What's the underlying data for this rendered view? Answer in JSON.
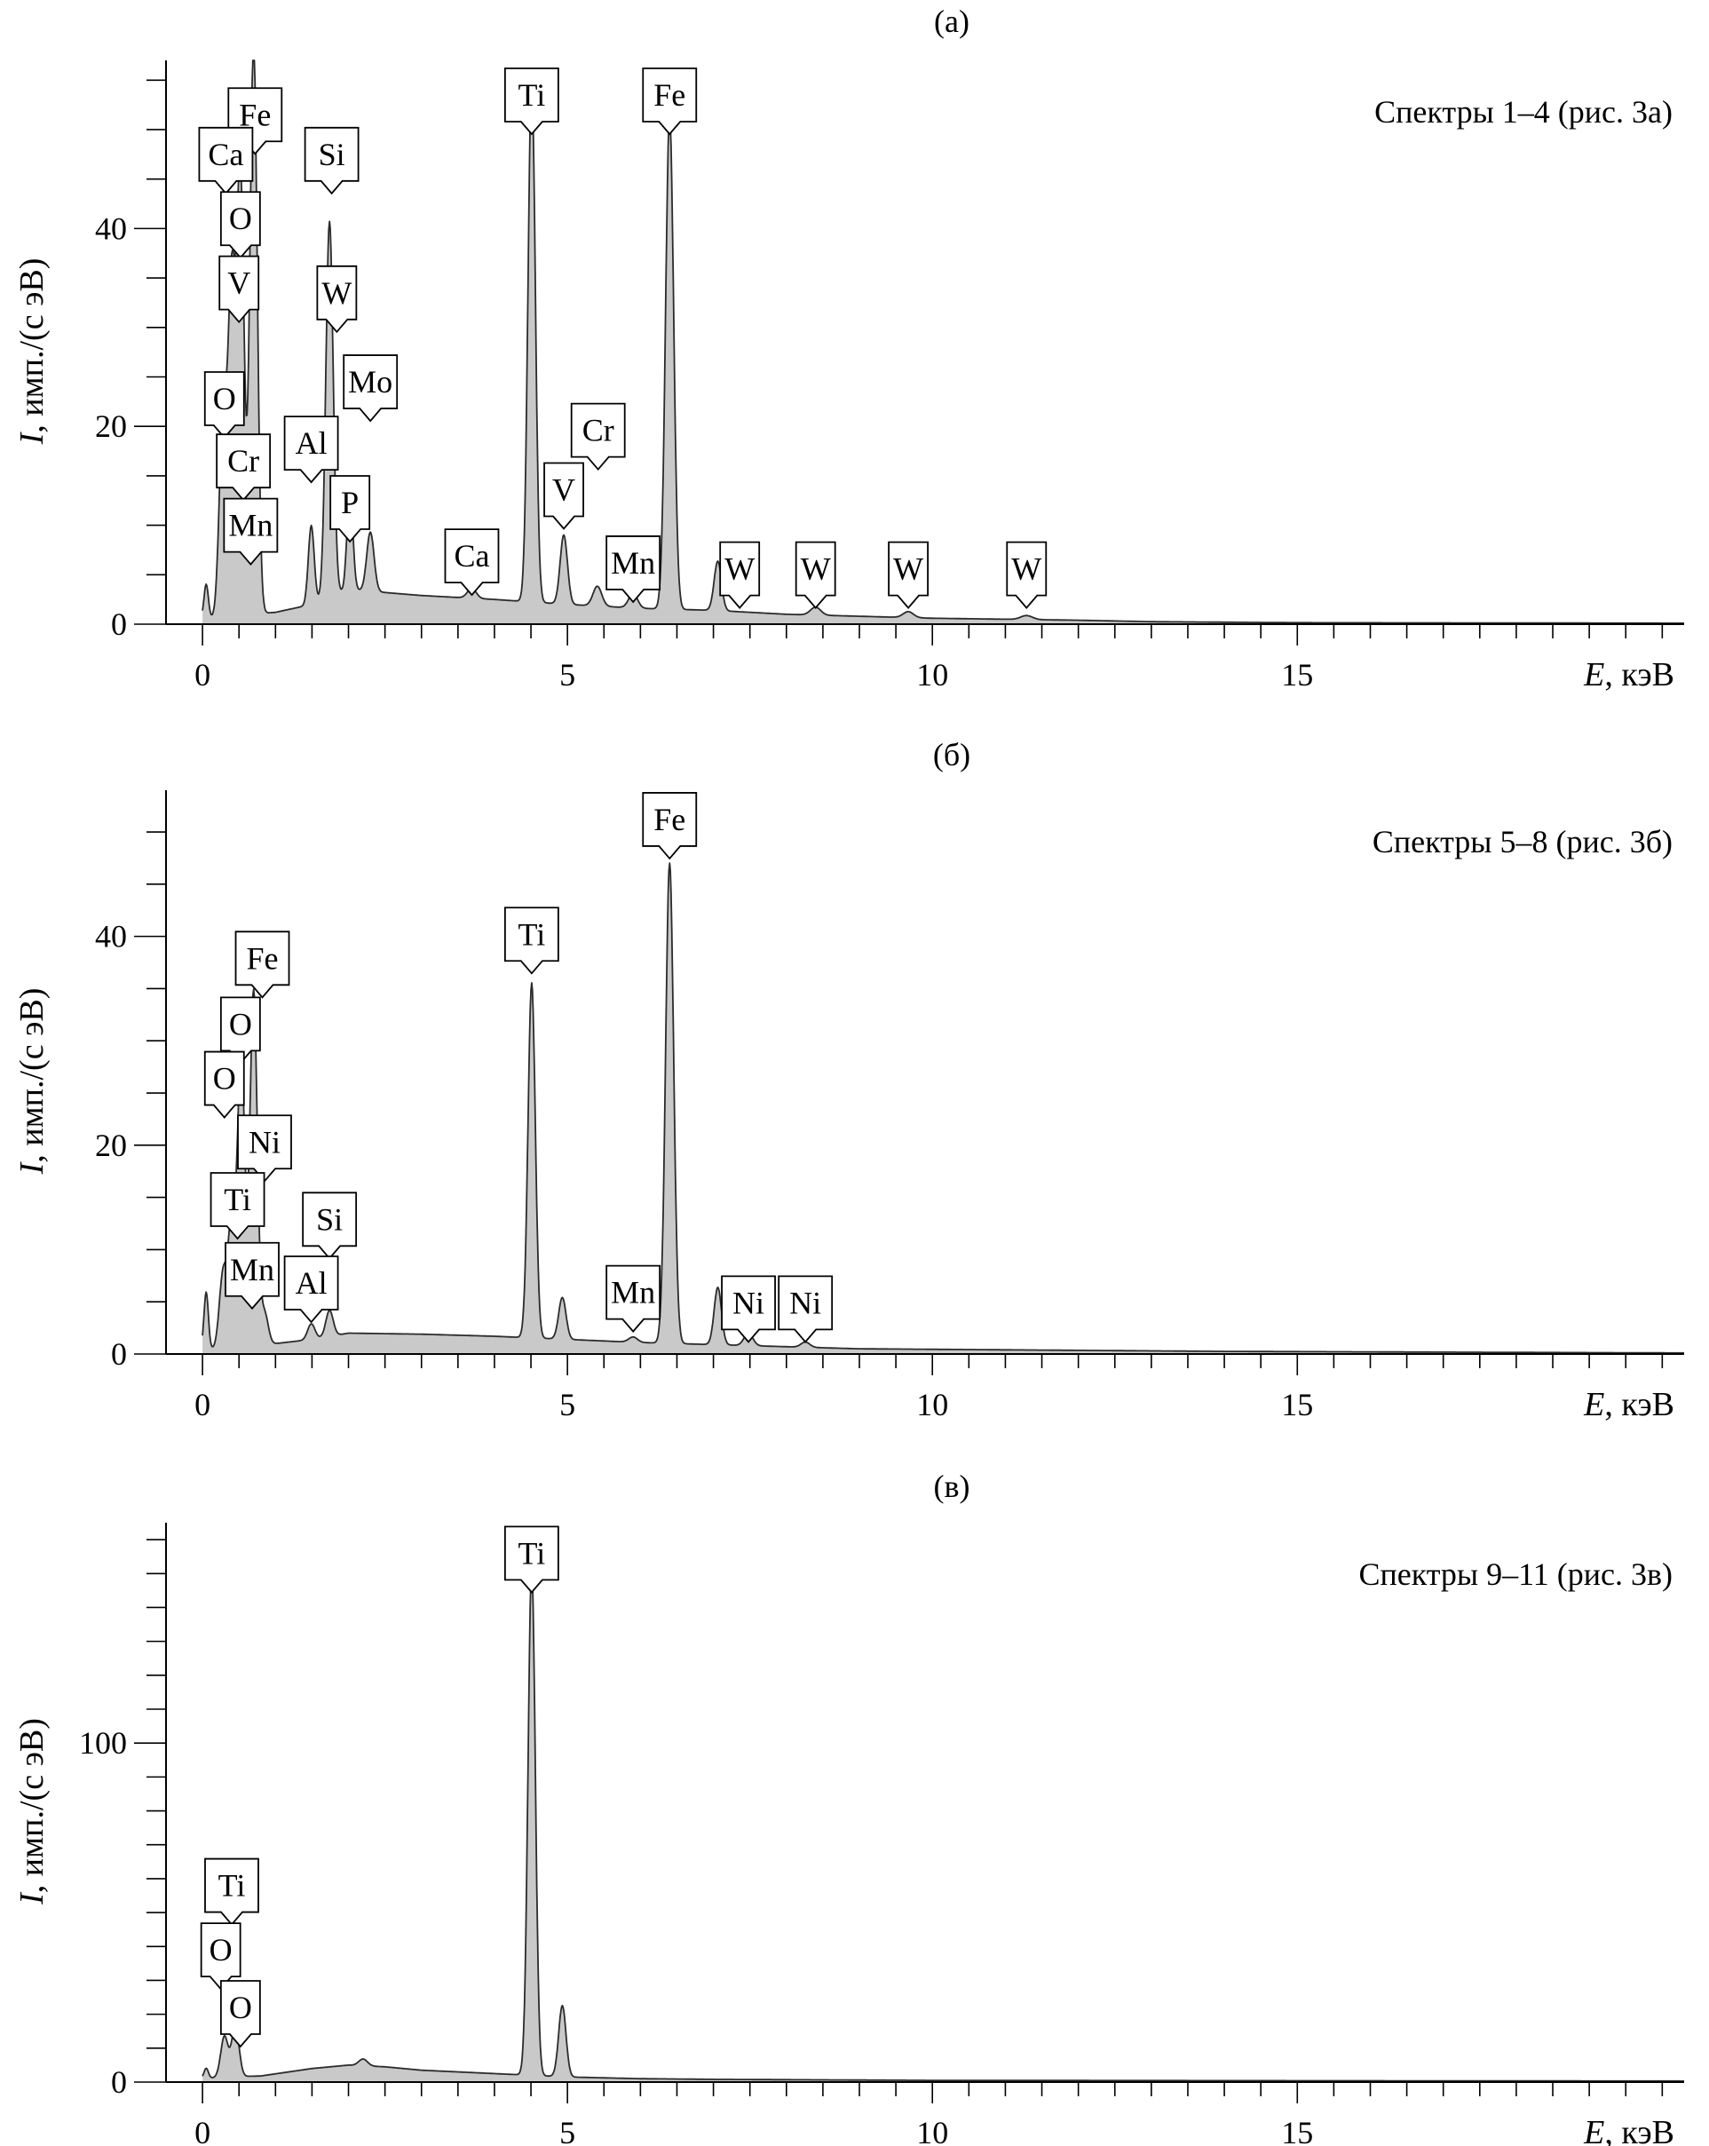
{
  "figure": {
    "background": "#ffffff",
    "fill_color": "#c9c9c9",
    "line_color": "#2b2b2b"
  },
  "chart_data": [
    {
      "type": "area",
      "panel_label": "(а)",
      "caption": "Спектры 1–4 (рис. 3а)",
      "ylabel": "I, имп./(с эВ)",
      "xlabel": "E, кэВ",
      "xlim": [
        -0.5,
        20.3
      ],
      "ylim": [
        0,
        57
      ],
      "x_ticks": [
        0,
        5,
        10,
        15
      ],
      "y_ticks": [
        0,
        20,
        40
      ],
      "x_minor_step": 0.5,
      "y_minor_step": 5,
      "baseline": [
        [
          0,
          0.5
        ],
        [
          0.3,
          0.8
        ],
        [
          1.0,
          1.2
        ],
        [
          1.5,
          2.0
        ],
        [
          2.0,
          3.5
        ],
        [
          2.5,
          3.2
        ],
        [
          3.0,
          2.9
        ],
        [
          4.0,
          2.5
        ],
        [
          5.0,
          2.0
        ],
        [
          6.0,
          1.6
        ],
        [
          7.0,
          1.4
        ],
        [
          8.0,
          1.0
        ],
        [
          9.0,
          0.8
        ],
        [
          10.0,
          0.6
        ],
        [
          11.0,
          0.5
        ],
        [
          12.0,
          0.4
        ],
        [
          13.0,
          0.25
        ],
        [
          15.0,
          0.15
        ],
        [
          20.3,
          0.1
        ]
      ],
      "peaks": [
        {
          "x": 0.05,
          "height": 3.5,
          "width": 0.03
        },
        {
          "x": 0.28,
          "height": 20,
          "width": 0.05
        },
        {
          "x": 0.4,
          "height": 33,
          "width": 0.05
        },
        {
          "x": 0.52,
          "height": 44,
          "width": 0.05
        },
        {
          "x": 0.7,
          "height": 58,
          "width": 0.05
        },
        {
          "x": 1.49,
          "height": 8,
          "width": 0.04
        },
        {
          "x": 1.74,
          "height": 38,
          "width": 0.05
        },
        {
          "x": 2.02,
          "height": 10,
          "width": 0.04
        },
        {
          "x": 2.3,
          "height": 6,
          "width": 0.05
        },
        {
          "x": 3.69,
          "height": 1,
          "width": 0.06
        },
        {
          "x": 4.51,
          "height": 53,
          "width": 0.05
        },
        {
          "x": 4.95,
          "height": 7,
          "width": 0.05
        },
        {
          "x": 5.41,
          "height": 2,
          "width": 0.06
        },
        {
          "x": 5.9,
          "height": 1.5,
          "width": 0.06
        },
        {
          "x": 6.4,
          "height": 50,
          "width": 0.055
        },
        {
          "x": 7.06,
          "height": 5,
          "width": 0.05
        },
        {
          "x": 8.4,
          "height": 0.8,
          "width": 0.07
        },
        {
          "x": 9.67,
          "height": 0.6,
          "width": 0.07
        },
        {
          "x": 11.29,
          "height": 0.4,
          "width": 0.08
        }
      ],
      "labels": [
        {
          "text": "Fe",
          "x": 0.72,
          "y": 51.5
        },
        {
          "text": "Ca",
          "x": 0.32,
          "y": 47.5
        },
        {
          "text": "Si",
          "x": 1.77,
          "y": 47.5
        },
        {
          "text": "O",
          "x": 0.52,
          "y": 41.0
        },
        {
          "text": "V",
          "x": 0.5,
          "y": 34.5
        },
        {
          "text": "W",
          "x": 1.84,
          "y": 33.5
        },
        {
          "text": "O",
          "x": 0.3,
          "y": 22.8
        },
        {
          "text": "Mo",
          "x": 2.3,
          "y": 24.5
        },
        {
          "text": "Al",
          "x": 1.49,
          "y": 18.3
        },
        {
          "text": "Cr",
          "x": 0.56,
          "y": 16.5
        },
        {
          "text": "Cr",
          "x": 5.42,
          "y": 19.6
        },
        {
          "text": "V",
          "x": 4.95,
          "y": 13.6
        },
        {
          "text": "P",
          "x": 2.02,
          "y": 12.3
        },
        {
          "text": "Mn",
          "x": 0.66,
          "y": 10.0
        },
        {
          "text": "Ca",
          "x": 3.69,
          "y": 6.9
        },
        {
          "text": "Mn",
          "x": 5.9,
          "y": 6.2
        },
        {
          "text": "W",
          "x": 7.36,
          "y": 5.6
        },
        {
          "text": "W",
          "x": 8.4,
          "y": 5.6
        },
        {
          "text": "W",
          "x": 9.67,
          "y": 5.6
        },
        {
          "text": "W",
          "x": 11.29,
          "y": 5.6
        },
        {
          "text": "Ti",
          "x": 4.51,
          "y": 53.5
        },
        {
          "text": "Fe",
          "x": 6.4,
          "y": 53.5
        }
      ]
    },
    {
      "type": "area",
      "panel_label": "(б)",
      "caption": "Спектры 5–8 (рис. 3б)",
      "ylabel": "I, имп./(с эВ)",
      "xlabel": "E, кэВ",
      "xlim": [
        -0.5,
        20.3
      ],
      "ylim": [
        0,
        54
      ],
      "x_ticks": [
        0,
        5,
        10,
        15
      ],
      "y_ticks": [
        0,
        20,
        40
      ],
      "x_minor_step": 0.5,
      "y_minor_step": 5,
      "baseline": [
        [
          0,
          0.4
        ],
        [
          0.3,
          0.6
        ],
        [
          1.0,
          1.0
        ],
        [
          1.5,
          1.4
        ],
        [
          2.0,
          2.0
        ],
        [
          3.0,
          1.9
        ],
        [
          4.0,
          1.7
        ],
        [
          5.0,
          1.4
        ],
        [
          6.0,
          1.1
        ],
        [
          7.0,
          0.9
        ],
        [
          8.0,
          0.7
        ],
        [
          9.0,
          0.5
        ],
        [
          10.0,
          0.45
        ],
        [
          12.0,
          0.35
        ],
        [
          14.0,
          0.25
        ],
        [
          20.3,
          0.1
        ]
      ],
      "peaks": [
        {
          "x": 0.05,
          "height": 5.5,
          "width": 0.03
        },
        {
          "x": 0.28,
          "height": 7,
          "width": 0.05
        },
        {
          "x": 0.4,
          "height": 12,
          "width": 0.05
        },
        {
          "x": 0.53,
          "height": 28,
          "width": 0.05
        },
        {
          "x": 0.7,
          "height": 34,
          "width": 0.05
        },
        {
          "x": 0.85,
          "height": 3,
          "width": 0.05
        },
        {
          "x": 1.49,
          "height": 1.5,
          "width": 0.05
        },
        {
          "x": 1.74,
          "height": 2.5,
          "width": 0.05
        },
        {
          "x": 4.51,
          "height": 34,
          "width": 0.05
        },
        {
          "x": 4.93,
          "height": 4,
          "width": 0.05
        },
        {
          "x": 5.9,
          "height": 0.5,
          "width": 0.06
        },
        {
          "x": 6.4,
          "height": 46,
          "width": 0.055
        },
        {
          "x": 7.06,
          "height": 5.5,
          "width": 0.05
        },
        {
          "x": 7.48,
          "height": 1.2,
          "width": 0.06
        },
        {
          "x": 8.26,
          "height": 0.5,
          "width": 0.06
        }
      ],
      "labels": [
        {
          "text": "Fe",
          "x": 6.4,
          "y": 51.2
        },
        {
          "text": "Ti",
          "x": 4.51,
          "y": 40.2
        },
        {
          "text": "Fe",
          "x": 0.82,
          "y": 37.9
        },
        {
          "text": "O",
          "x": 0.52,
          "y": 31.6
        },
        {
          "text": "O",
          "x": 0.3,
          "y": 26.4
        },
        {
          "text": "Ni",
          "x": 0.85,
          "y": 20.3
        },
        {
          "text": "Ti",
          "x": 0.48,
          "y": 14.8
        },
        {
          "text": "Si",
          "x": 1.74,
          "y": 12.9
        },
        {
          "text": "Mn",
          "x": 0.68,
          "y": 8.1
        },
        {
          "text": "Al",
          "x": 1.49,
          "y": 6.8
        },
        {
          "text": "Mn",
          "x": 5.9,
          "y": 5.9
        },
        {
          "text": "Ni",
          "x": 7.48,
          "y": 4.9
        },
        {
          "text": "Ni",
          "x": 8.26,
          "y": 4.9
        }
      ]
    },
    {
      "type": "area",
      "panel_label": "(в)",
      "caption": "Спектры 9–11 (рис. 3в)",
      "ylabel": "I, имп./(с эВ)",
      "xlabel": "E, кэВ",
      "xlim": [
        -0.5,
        20.3
      ],
      "ylim": [
        0,
        165
      ],
      "x_ticks": [
        0,
        5,
        10,
        15
      ],
      "y_ticks": [
        0,
        100
      ],
      "x_minor_step": 0.5,
      "y_minor_step": 10,
      "baseline": [
        [
          0,
          1.0
        ],
        [
          0.3,
          1.5
        ],
        [
          0.8,
          1.8
        ],
        [
          1.5,
          4
        ],
        [
          2.0,
          5
        ],
        [
          2.5,
          4.5
        ],
        [
          3.0,
          3.5
        ],
        [
          4.0,
          2.5
        ],
        [
          5.0,
          1.5
        ],
        [
          6.0,
          1.0
        ],
        [
          7.0,
          0.8
        ],
        [
          10.0,
          0.5
        ],
        [
          20.3,
          0.3
        ]
      ],
      "peaks": [
        {
          "x": 0.05,
          "height": 3,
          "width": 0.03
        },
        {
          "x": 0.3,
          "height": 12,
          "width": 0.05
        },
        {
          "x": 0.45,
          "height": 15,
          "width": 0.05
        },
        {
          "x": 2.2,
          "height": 2,
          "width": 0.06
        },
        {
          "x": 4.51,
          "height": 150,
          "width": 0.05
        },
        {
          "x": 4.93,
          "height": 21,
          "width": 0.05
        }
      ],
      "labels": [
        {
          "text": "Ti",
          "x": 4.51,
          "y": 156
        },
        {
          "text": "Ti",
          "x": 0.4,
          "y": 58
        },
        {
          "text": "O",
          "x": 0.25,
          "y": 39
        },
        {
          "text": "O",
          "x": 0.52,
          "y": 22
        }
      ]
    }
  ]
}
